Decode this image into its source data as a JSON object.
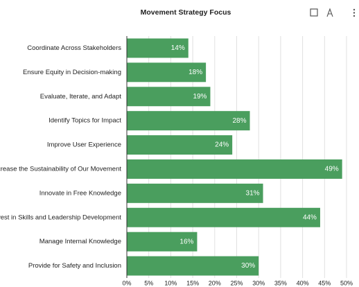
{
  "chart_data": {
    "type": "bar",
    "orientation": "horizontal",
    "title": "Movement Strategy Focus",
    "categories": [
      "Coordinate Across Stakeholders",
      "Ensure Equity in Decision-making",
      "Evaluate, Iterate, and Adapt",
      "Identify Topics for Impact",
      "Improve User Experience",
      "Increase the Sustainability of Our Movement",
      "Innovate in Free Knowledge",
      "Invest in Skills and Leadership Development",
      "Manage Internal Knowledge",
      "Provide for Safety and Inclusion"
    ],
    "values": [
      14,
      18,
      19,
      28,
      24,
      49,
      31,
      44,
      16,
      30
    ],
    "value_labels": [
      "14%",
      "18%",
      "19%",
      "28%",
      "24%",
      "49%",
      "31%",
      "44%",
      "16%",
      "30%"
    ],
    "color": "#4a9e5e",
    "xlim": [
      0,
      50
    ],
    "xticks": [
      {
        "value": 0,
        "label": "0%"
      },
      {
        "value": 5,
        "label": "5%"
      },
      {
        "value": 10,
        "label": "10%"
      },
      {
        "value": 15,
        "label": "15%"
      },
      {
        "value": 20,
        "label": "20%"
      },
      {
        "value": 25,
        "label": "25%"
      },
      {
        "value": 30,
        "label": "30%"
      },
      {
        "value": 35,
        "label": "35%"
      },
      {
        "value": 40,
        "label": "40%"
      },
      {
        "value": 45,
        "label": "45%"
      },
      {
        "value": 50,
        "label": "50%"
      }
    ],
    "grid": true
  }
}
